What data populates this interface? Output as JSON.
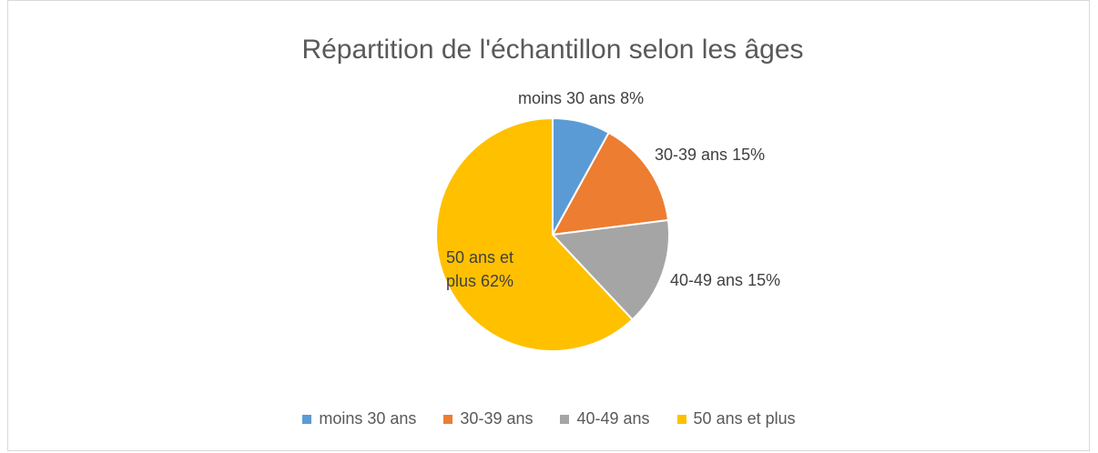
{
  "chart_data": {
    "type": "pie",
    "title": "Répartition de l'échantillon selon les âges",
    "categories": [
      "moins 30 ans",
      "30-39 ans",
      "40-49 ans",
      "50 ans et plus"
    ],
    "values": [
      8,
      15,
      15,
      62
    ],
    "value_labels": [
      "8%",
      "15%",
      "15%",
      "62%"
    ],
    "colors": [
      "#5b9bd5",
      "#ed7d31",
      "#a5a5a5",
      "#ffc000"
    ],
    "legend": "bottom"
  }
}
